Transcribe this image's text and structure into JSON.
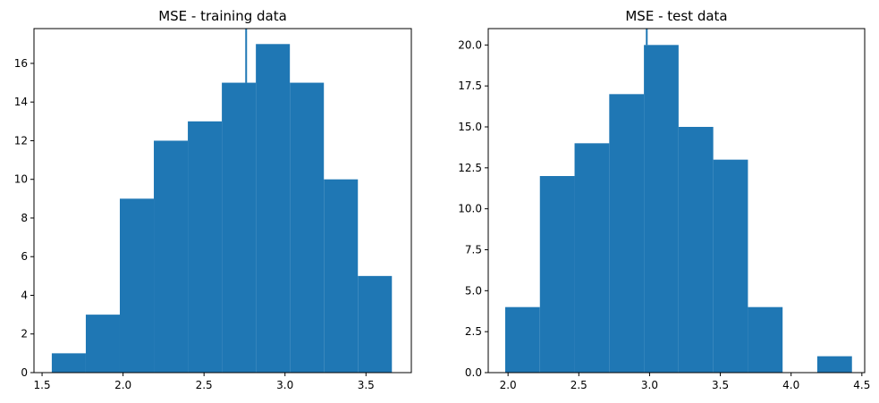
{
  "chart_data": [
    {
      "type": "histogram",
      "title": "MSE - training data",
      "xlabel": "",
      "ylabel": "",
      "xlim": [
        1.45,
        3.78
      ],
      "ylim": [
        0,
        17.8
      ],
      "xticks": [
        1.5,
        2.0,
        2.5,
        3.0,
        3.5
      ],
      "xtick_labels": [
        "1.5",
        "2.0",
        "2.5",
        "3.0",
        "3.5"
      ],
      "yticks": [
        0,
        2,
        4,
        6,
        8,
        10,
        12,
        14,
        16
      ],
      "ytick_labels": [
        "0",
        "2",
        "4",
        "6",
        "8",
        "10",
        "12",
        "14",
        "16"
      ],
      "bin_edges": [
        1.56,
        1.77,
        1.98,
        2.19,
        2.4,
        2.61,
        2.82,
        3.03,
        3.24,
        3.45,
        3.66
      ],
      "counts": [
        1,
        3,
        9,
        12,
        13,
        15,
        17,
        15,
        10,
        5
      ],
      "vline_x": 2.76,
      "color": "#1f77b4"
    },
    {
      "type": "histogram",
      "title": "MSE - test data",
      "xlabel": "",
      "ylabel": "",
      "xlim": [
        1.86,
        4.52
      ],
      "ylim": [
        0,
        21
      ],
      "xticks": [
        2.0,
        2.5,
        3.0,
        3.5,
        4.0,
        4.5
      ],
      "xtick_labels": [
        "2.0",
        "2.5",
        "3.0",
        "3.5",
        "4.0",
        "4.5"
      ],
      "yticks": [
        0,
        2.5,
        5,
        7.5,
        10,
        12.5,
        15,
        17.5,
        20
      ],
      "ytick_labels": [
        "0.0",
        "2.5",
        "5.0",
        "7.5",
        "10.0",
        "12.5",
        "15.0",
        "17.5",
        "20.0"
      ],
      "bin_edges": [
        1.98,
        2.225,
        2.47,
        2.715,
        2.96,
        3.205,
        3.45,
        3.695,
        3.94,
        4.185,
        4.43
      ],
      "counts": [
        4,
        12,
        14,
        17,
        20,
        15,
        13,
        4,
        0,
        1
      ],
      "vline_x": 2.98,
      "color": "#1f77b4"
    }
  ]
}
